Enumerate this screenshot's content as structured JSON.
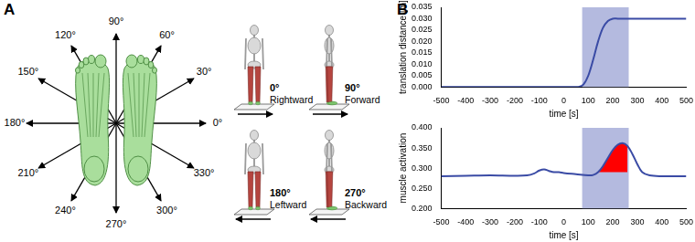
{
  "panel_a": {
    "label": "A",
    "directions": [
      {
        "angle": 0,
        "label": "0°"
      },
      {
        "angle": 30,
        "label": "30°"
      },
      {
        "angle": 60,
        "label": "60°"
      },
      {
        "angle": 90,
        "label": "90°"
      },
      {
        "angle": 120,
        "label": "120°"
      },
      {
        "angle": 150,
        "label": "150°"
      },
      {
        "angle": 180,
        "label": "180°"
      },
      {
        "angle": 210,
        "label": "210°"
      },
      {
        "angle": 240,
        "label": "240°"
      },
      {
        "angle": 270,
        "label": "270°"
      },
      {
        "angle": 300,
        "label": "300°"
      },
      {
        "angle": 330,
        "label": "330°"
      }
    ],
    "figures": [
      {
        "angle": 0,
        "label": "0°",
        "name": "Rightward"
      },
      {
        "angle": 90,
        "label": "90°",
        "name": "Forward"
      },
      {
        "angle": 180,
        "label": "180°",
        "name": "Leftward"
      },
      {
        "angle": 270,
        "label": "270°",
        "name": "Backward"
      }
    ]
  },
  "panel_b": {
    "label": "B"
  },
  "chart_data": [
    {
      "type": "line",
      "x": [
        -500,
        -400,
        -300,
        -200,
        -100,
        0,
        20,
        40,
        60,
        80,
        100,
        120,
        140,
        160,
        180,
        200,
        220,
        240,
        260,
        300,
        400,
        500
      ],
      "values": [
        0,
        0,
        0,
        0,
        0,
        0,
        0,
        0,
        0,
        0.001,
        0.005,
        0.012,
        0.02,
        0.026,
        0.029,
        0.03,
        0.03,
        0.03,
        0.03,
        0.03,
        0.03,
        0.03
      ],
      "color": "#3a4ba5",
      "x_label": "time [s]",
      "y_label": "translation distance [m]",
      "xlim": [
        -500,
        500
      ],
      "xticks": [
        -500,
        -400,
        -300,
        -200,
        -100,
        0,
        100,
        200,
        300,
        400,
        500
      ],
      "ylim": [
        0,
        0.035
      ],
      "yticks": [
        {
          "value": 0,
          "label": "0.000"
        },
        0.005,
        {
          "value": 0.01,
          "label": "0.010"
        },
        0.015,
        {
          "value": 0.02,
          "label": "0.020"
        },
        0.025,
        {
          "value": 0.03,
          "label": "0.030"
        },
        0.035
      ],
      "grid": false,
      "shaded_x": [
        75,
        265
      ],
      "shaded_color": "#b4badf"
    },
    {
      "type": "line",
      "x": [
        -500,
        -400,
        -300,
        -200,
        -150,
        -120,
        -100,
        -80,
        -60,
        -40,
        -20,
        0,
        50,
        100,
        120,
        140,
        160,
        180,
        200,
        220,
        240,
        260,
        280,
        300,
        320,
        350,
        400,
        500
      ],
      "values": [
        0.28,
        0.281,
        0.282,
        0.281,
        0.282,
        0.287,
        0.294,
        0.297,
        0.293,
        0.29,
        0.29,
        0.288,
        0.285,
        0.282,
        0.283,
        0.29,
        0.305,
        0.325,
        0.345,
        0.358,
        0.362,
        0.355,
        0.335,
        0.31,
        0.29,
        0.282,
        0.28,
        0.28
      ],
      "color": "#3a4ba5",
      "x_label": "time [s]",
      "y_label": "muscle activation",
      "xlim": [
        -500,
        500
      ],
      "xticks": [
        -500,
        -400,
        -300,
        -200,
        -100,
        0,
        100,
        200,
        300,
        400,
        500
      ],
      "ylim": [
        0.2,
        0.4
      ],
      "yticks": [
        {
          "value": 0.2,
          "label": "0.200"
        },
        {
          "value": 0.25,
          "label": "0.250"
        },
        {
          "value": 0.3,
          "label": "0.300"
        },
        {
          "value": 0.35,
          "label": "0.350"
        },
        {
          "value": 0.4,
          "label": "0.400"
        }
      ],
      "grid": false,
      "shaded_x": [
        75,
        265
      ],
      "shaded_color": "#b4badf",
      "area": {
        "x": [
          140,
          160,
          180,
          200,
          220,
          240,
          260
        ],
        "upper": [
          0.29,
          0.305,
          0.325,
          0.345,
          0.358,
          0.362,
          0.355
        ],
        "lower": [
          0.29,
          0.29,
          0.29,
          0.29,
          0.29,
          0.29,
          0.29
        ],
        "color": "#ff0000"
      }
    }
  ]
}
